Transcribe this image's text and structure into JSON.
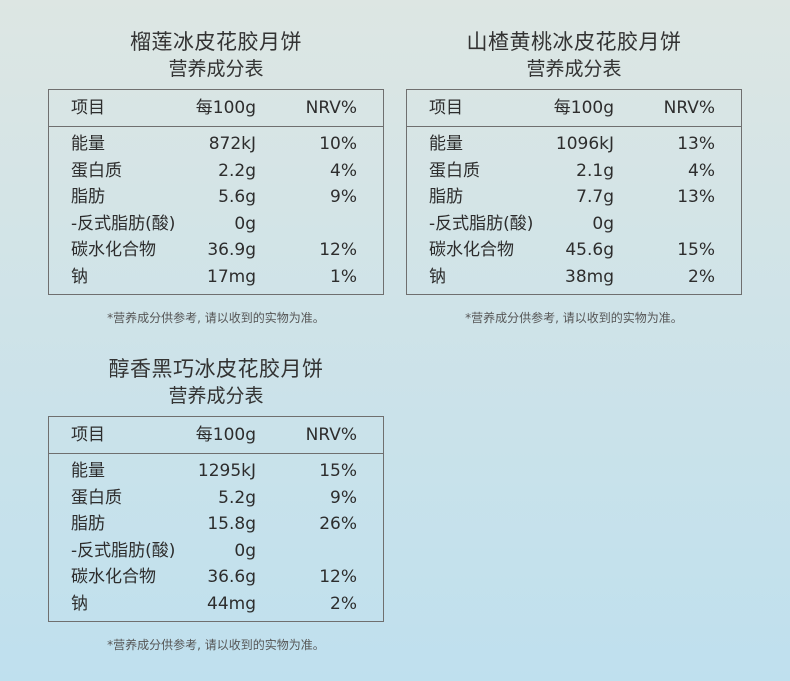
{
  "panels": [
    {
      "title": "榴莲冰皮花胶月饼",
      "subtitle": "营养成分表",
      "headers": [
        "项目",
        "每100g",
        "NRV%"
      ],
      "rows": [
        [
          "能量",
          "872kJ",
          "10%"
        ],
        [
          "蛋白质",
          "2.2g",
          "4%"
        ],
        [
          "脂肪",
          "5.6g",
          "9%"
        ],
        [
          "-反式脂肪(酸)",
          "0g",
          ""
        ],
        [
          "碳水化合物",
          "36.9g",
          "12%"
        ],
        [
          "钠",
          "17mg",
          "1%"
        ]
      ],
      "note": "*营养成分供参考, 请以收到的实物为准。"
    },
    {
      "title": "山楂黄桃冰皮花胶月饼",
      "subtitle": "营养成分表",
      "headers": [
        "项目",
        "每100g",
        "NRV%"
      ],
      "rows": [
        [
          "能量",
          "1096kJ",
          "13%"
        ],
        [
          "蛋白质",
          "2.1g",
          "4%"
        ],
        [
          "脂肪",
          "7.7g",
          "13%"
        ],
        [
          "-反式脂肪(酸)",
          "0g",
          ""
        ],
        [
          "碳水化合物",
          "45.6g",
          "15%"
        ],
        [
          "钠",
          "38mg",
          "2%"
        ]
      ],
      "note": "*营养成分供参考, 请以收到的实物为准。"
    },
    {
      "title": "醇香黑巧冰皮花胶月饼",
      "subtitle": "营养成分表",
      "headers": [
        "项目",
        "每100g",
        "NRV%"
      ],
      "rows": [
        [
          "能量",
          "1295kJ",
          "15%"
        ],
        [
          "蛋白质",
          "5.2g",
          "9%"
        ],
        [
          "脂肪",
          "15.8g",
          "26%"
        ],
        [
          "-反式脂肪(酸)",
          "0g",
          ""
        ],
        [
          "碳水化合物",
          "36.6g",
          "12%"
        ],
        [
          "钠",
          "44mg",
          "2%"
        ]
      ],
      "note": "*营养成分供参考, 请以收到的实物为准。"
    }
  ]
}
